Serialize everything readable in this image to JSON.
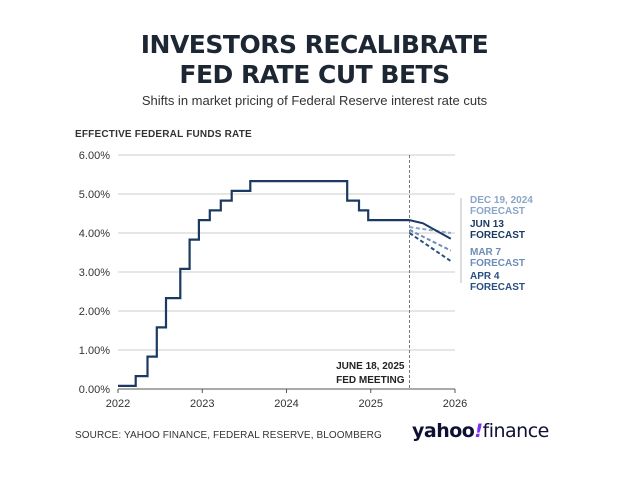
{
  "header": {
    "title_line1": "INVESTORS RECALIBRATE",
    "title_line2": "FED RATE CUT BETS",
    "subtitle": "Shifts in market pricing of Federal Reserve interest rate cuts"
  },
  "footer": {
    "source": "SOURCE: YAHOO FINANCE, FEDERAL RESERVE, BLOOMBERG",
    "logo_part1": "yahoo",
    "logo_bang": "!",
    "logo_part2": "finance"
  },
  "colors": {
    "navy": "#1b3a63",
    "light_blue": "#8aa6c8",
    "mid_blue": "#6d8db8",
    "dark_blue": "#2a4f82",
    "grid": "#cccccc",
    "meeting_line": "#777777"
  },
  "chart_data": {
    "type": "line",
    "ylabel": "EFFECTIVE FEDERAL FUNDS RATE",
    "xlim": [
      2022,
      2026
    ],
    "ylim": [
      0,
      6
    ],
    "yticks": [
      "0.00%",
      "1.00%",
      "2.00%",
      "3.00%",
      "4.00%",
      "5.00%",
      "6.00%"
    ],
    "xticks": [
      "2022",
      "2023",
      "2024",
      "2025",
      "2026"
    ],
    "grid": "horizontal",
    "annotation": {
      "x": 2025.46,
      "line1": "JUNE 18, 2025",
      "line2": "FED MEETING"
    },
    "history": {
      "x": [
        2022.0,
        2022.21,
        2022.21,
        2022.35,
        2022.35,
        2022.46,
        2022.46,
        2022.57,
        2022.57,
        2022.74,
        2022.74,
        2022.85,
        2022.85,
        2022.96,
        2022.96,
        2023.09,
        2023.09,
        2023.22,
        2023.22,
        2023.35,
        2023.35,
        2023.57,
        2023.57,
        2024.72,
        2024.72,
        2024.86,
        2024.86,
        2024.97,
        2024.97,
        2025.46
      ],
      "y": [
        0.08,
        0.08,
        0.33,
        0.33,
        0.83,
        0.83,
        1.58,
        1.58,
        2.33,
        2.33,
        3.08,
        3.08,
        3.83,
        3.83,
        4.33,
        4.33,
        4.58,
        4.58,
        4.83,
        4.83,
        5.08,
        5.08,
        5.33,
        5.33,
        4.83,
        4.83,
        4.58,
        4.58,
        4.33,
        4.33
      ]
    },
    "forecasts": [
      {
        "name": "DEC 19, 2024 FORECAST",
        "color": "#8aa6c8",
        "dashed": true,
        "x": [
          2025.46,
          2025.95
        ],
        "y": [
          4.15,
          4.0
        ]
      },
      {
        "name": "JUN 13 FORECAST",
        "color": "#1b3a63",
        "dashed": false,
        "x": [
          2025.46,
          2025.62,
          2025.95
        ],
        "y": [
          4.33,
          4.25,
          3.85
        ]
      },
      {
        "name": "MAR 7 FORECAST",
        "color": "#6d8db8",
        "dashed": true,
        "x": [
          2025.46,
          2025.95
        ],
        "y": [
          4.08,
          3.55
        ]
      },
      {
        "name": "APR 4 FORECAST",
        "color": "#2a4f82",
        "dashed": true,
        "x": [
          2025.46,
          2025.95
        ],
        "y": [
          4.0,
          3.28
        ]
      }
    ]
  }
}
